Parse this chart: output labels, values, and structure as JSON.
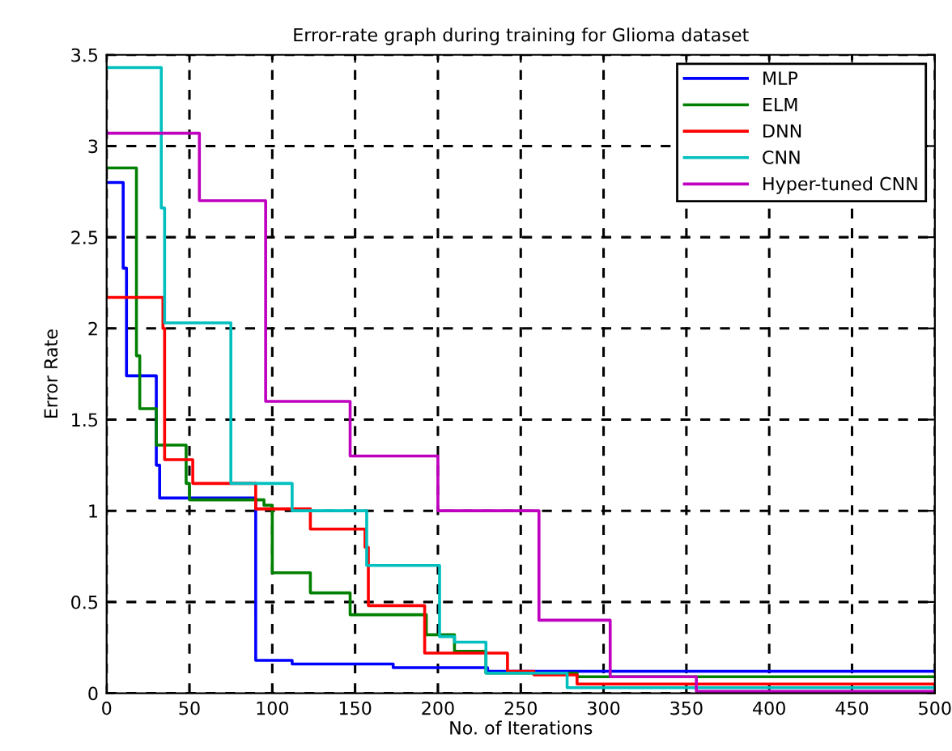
{
  "chart_data": {
    "type": "step",
    "title": "Error-rate graph during training for Glioma dataset",
    "xlabel": "No. of Iterations",
    "ylabel": "Error Rate",
    "xlim": [
      0,
      500
    ],
    "xticks": [
      0,
      50,
      100,
      150,
      200,
      250,
      300,
      350,
      400,
      450,
      500
    ],
    "ylim": [
      0,
      3.5
    ],
    "yticks": [
      0,
      0.5,
      1,
      1.5,
      2,
      2.5,
      3,
      3.5
    ],
    "grid": true,
    "legend": "top right",
    "series": [
      {
        "name": "MLP",
        "color": "#0000ff",
        "x": [
          0,
          10,
          12,
          30,
          32,
          90,
          112,
          173,
          230,
          500
        ],
        "values": [
          2.8,
          2.33,
          1.74,
          1.25,
          1.07,
          0.18,
          0.16,
          0.14,
          0.12,
          0.12
        ]
      },
      {
        "name": "ELM",
        "color": "#008000",
        "x": [
          0,
          18,
          20,
          30,
          48,
          50,
          95,
          100,
          123,
          147,
          193,
          210,
          229,
          284,
          500
        ],
        "values": [
          2.88,
          1.85,
          1.56,
          1.36,
          1.15,
          1.06,
          1.03,
          0.66,
          0.55,
          0.43,
          0.32,
          0.23,
          0.11,
          0.09,
          0.09
        ]
      },
      {
        "name": "DNN",
        "color": "#ff0000",
        "x": [
          0,
          34,
          35,
          52,
          90,
          123,
          156,
          158,
          192,
          242,
          258,
          284,
          500
        ],
        "values": [
          2.17,
          2.0,
          1.28,
          1.15,
          1.01,
          0.9,
          0.8,
          0.48,
          0.22,
          0.12,
          0.1,
          0.05,
          0.05
        ]
      },
      {
        "name": "CNN",
        "color": "#00bfbf",
        "x": [
          0,
          33,
          35,
          75,
          112,
          157,
          201,
          210,
          229,
          278,
          500
        ],
        "values": [
          3.43,
          2.66,
          2.03,
          1.15,
          1.0,
          0.7,
          0.31,
          0.28,
          0.11,
          0.03,
          0.03
        ]
      },
      {
        "name": "Hyper-tuned CNN",
        "color": "#bf00bf",
        "x": [
          0,
          56,
          96,
          147,
          200,
          261,
          304,
          356,
          500
        ],
        "values": [
          3.07,
          2.7,
          1.6,
          1.3,
          1.0,
          0.4,
          0.09,
          0.01,
          0.01
        ]
      }
    ]
  }
}
